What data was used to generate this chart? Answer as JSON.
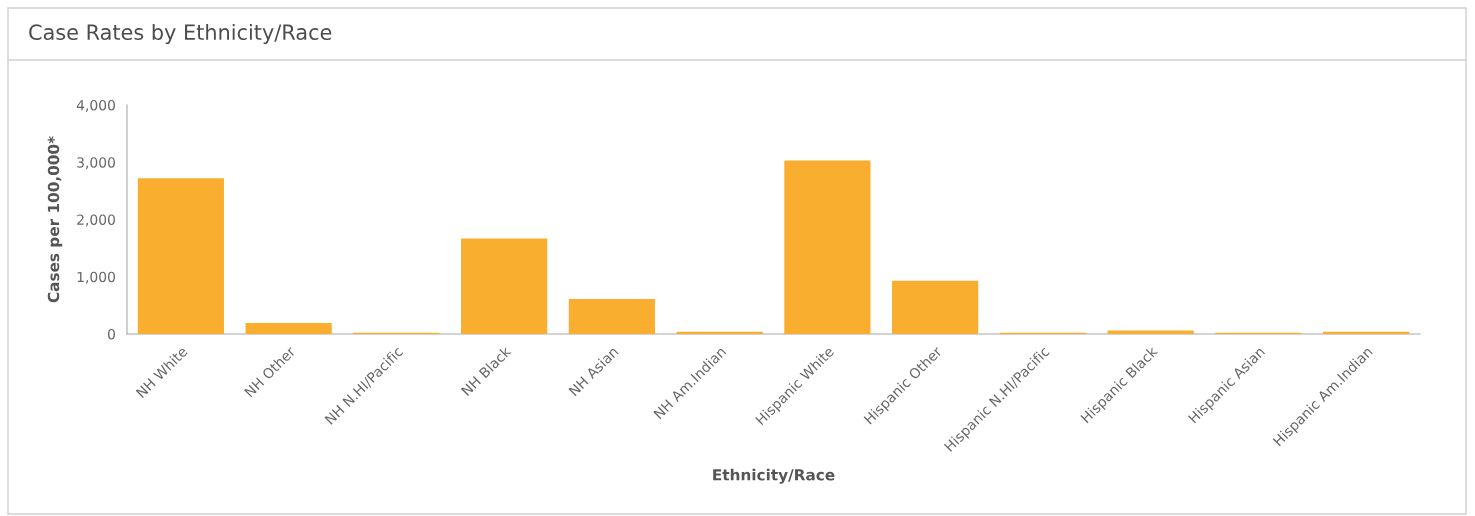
{
  "chart_data": {
    "type": "bar",
    "title": "Case Rates by Ethnicity/Race",
    "xlabel": "Ethnicity/Race",
    "ylabel": "Cases per 100,000*",
    "categories": [
      "NH White",
      "NH Other",
      "NH N.HI/Pacific",
      "NH Black",
      "NH Asian",
      "NH Am.Indian",
      "Hispanic White",
      "Hispanic Other",
      "Hispanic N.HI/Pacific",
      "Hispanic Black",
      "Hispanic Asian",
      "Hispanic Am.Indian"
    ],
    "values": [
      2720,
      190,
      20,
      1670,
      610,
      40,
      3030,
      930,
      20,
      60,
      20,
      40
    ],
    "color": "#f9ae30",
    "ylim": [
      0,
      4000
    ],
    "yticks": [
      {
        "value": 0,
        "label": "0"
      },
      {
        "value": 1000,
        "label": "1,000"
      },
      {
        "value": 2000,
        "label": "2,000"
      },
      {
        "value": 3000,
        "label": "3,000"
      },
      {
        "value": 4000,
        "label": "4,000"
      }
    ],
    "grid": false,
    "legend": false
  }
}
